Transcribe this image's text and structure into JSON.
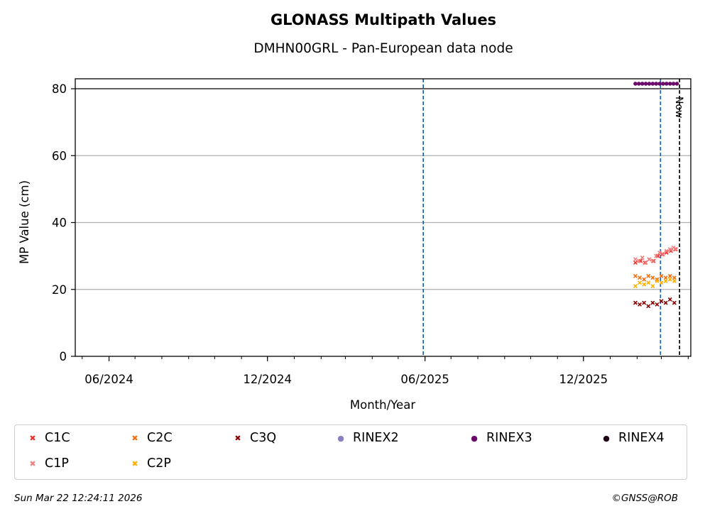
{
  "header": {
    "title": "GLONASS Multipath Values",
    "subtitle": "DMHN00GRL - Pan-European data node"
  },
  "chart_data": {
    "type": "scatter",
    "title": "GLONASS Multipath Values",
    "subtitle": "DMHN00GRL - Pan-European data node",
    "xlabel": "Month/Year",
    "ylabel": "MP Value (cm)",
    "ylim": [
      0,
      83
    ],
    "xlim": [
      "2024-04-23",
      "2026-04-04"
    ],
    "yticks": [
      0,
      20,
      40,
      60,
      80
    ],
    "xticks": [
      {
        "date": "2024-06-01",
        "label": "06/2024"
      },
      {
        "date": "2024-12-01",
        "label": "12/2024"
      },
      {
        "date": "2025-06-01",
        "label": "06/2025"
      },
      {
        "date": "2025-12-01",
        "label": "12/2025"
      }
    ],
    "grid": "horizontal",
    "threshold_line": 80,
    "vertical_lines": [
      {
        "date": "2025-05-30",
        "style": "dashed",
        "color": "#1f5fa8"
      },
      {
        "date": "2026-02-28",
        "style": "dashed",
        "color": "#1f5fa8"
      },
      {
        "date": "2026-03-22",
        "style": "dashed",
        "color": "#000000",
        "label": "Now"
      }
    ],
    "series": [
      {
        "name": "C1C",
        "color": "#e8332a",
        "marker": "x",
        "x": [
          "2026-01-30",
          "2026-02-05",
          "2026-02-10",
          "2026-02-15",
          "2026-02-20",
          "2026-02-25",
          "2026-03-02",
          "2026-03-07",
          "2026-03-12",
          "2026-03-17"
        ],
        "y": [
          28,
          28.5,
          28,
          29,
          28.5,
          30,
          30.5,
          31,
          31.5,
          32
        ]
      },
      {
        "name": "C1P",
        "color": "#f08080",
        "marker": "x",
        "x": [
          "2026-01-30",
          "2026-02-03",
          "2026-02-07",
          "2026-02-11",
          "2026-02-15",
          "2026-02-19",
          "2026-02-23",
          "2026-02-27",
          "2026-03-03",
          "2026-03-07",
          "2026-03-11",
          "2026-03-15",
          "2026-03-18"
        ],
        "y": [
          29,
          28.5,
          29.5,
          28,
          29,
          28.5,
          30,
          31,
          30.5,
          31.5,
          32,
          32.5,
          32
        ]
      },
      {
        "name": "C2C",
        "color": "#f07010",
        "marker": "x",
        "x": [
          "2026-01-30",
          "2026-02-04",
          "2026-02-09",
          "2026-02-14",
          "2026-02-19",
          "2026-02-24",
          "2026-03-01",
          "2026-03-06",
          "2026-03-11",
          "2026-03-16"
        ],
        "y": [
          24,
          23.5,
          23,
          24,
          23.5,
          23,
          24,
          23.5,
          24,
          23.5
        ]
      },
      {
        "name": "C2P",
        "color": "#ffb000",
        "marker": "x",
        "x": [
          "2026-01-30",
          "2026-02-04",
          "2026-02-09",
          "2026-02-14",
          "2026-02-19",
          "2026-02-24",
          "2026-03-01",
          "2026-03-06",
          "2026-03-11",
          "2026-03-16"
        ],
        "y": [
          21,
          22,
          21.5,
          22,
          21,
          22.5,
          22,
          22.5,
          23,
          22.5
        ]
      },
      {
        "name": "C3Q",
        "color": "#8b0000",
        "marker": "x",
        "x": [
          "2026-01-30",
          "2026-02-04",
          "2026-02-09",
          "2026-02-14",
          "2026-02-19",
          "2026-02-24",
          "2026-03-01",
          "2026-03-06",
          "2026-03-11",
          "2026-03-16"
        ],
        "y": [
          16,
          15.5,
          16,
          15,
          16,
          15.5,
          16.5,
          16,
          17,
          16
        ]
      },
      {
        "name": "RINEX2",
        "color": "#8a7fc0",
        "marker": "dot",
        "x": [],
        "y": []
      },
      {
        "name": "RINEX3",
        "color": "#6a0a6a",
        "marker": "dot",
        "x": [
          "2026-01-30",
          "2026-02-03",
          "2026-02-07",
          "2026-02-11",
          "2026-02-15",
          "2026-02-19",
          "2026-02-23",
          "2026-02-27",
          "2026-03-03",
          "2026-03-07",
          "2026-03-11",
          "2026-03-15",
          "2026-03-19"
        ],
        "y": [
          81.5,
          81.5,
          81.5,
          81.5,
          81.5,
          81.5,
          81.5,
          81.5,
          81.5,
          81.5,
          81.5,
          81.5,
          81.5
        ]
      },
      {
        "name": "RINEX4",
        "color": "#200018",
        "marker": "dot",
        "x": [],
        "y": []
      }
    ],
    "legend": [
      "C1C",
      "C2C",
      "C3Q",
      "RINEX2",
      "RINEX3",
      "RINEX4",
      "C1P",
      "C2P"
    ],
    "legend_placement": "bottom"
  },
  "annotations": {
    "now_label": "Now"
  },
  "footer": {
    "timestamp": "Sun Mar 22 12:24:11 2026",
    "credit": "©GNSS@ROB"
  }
}
